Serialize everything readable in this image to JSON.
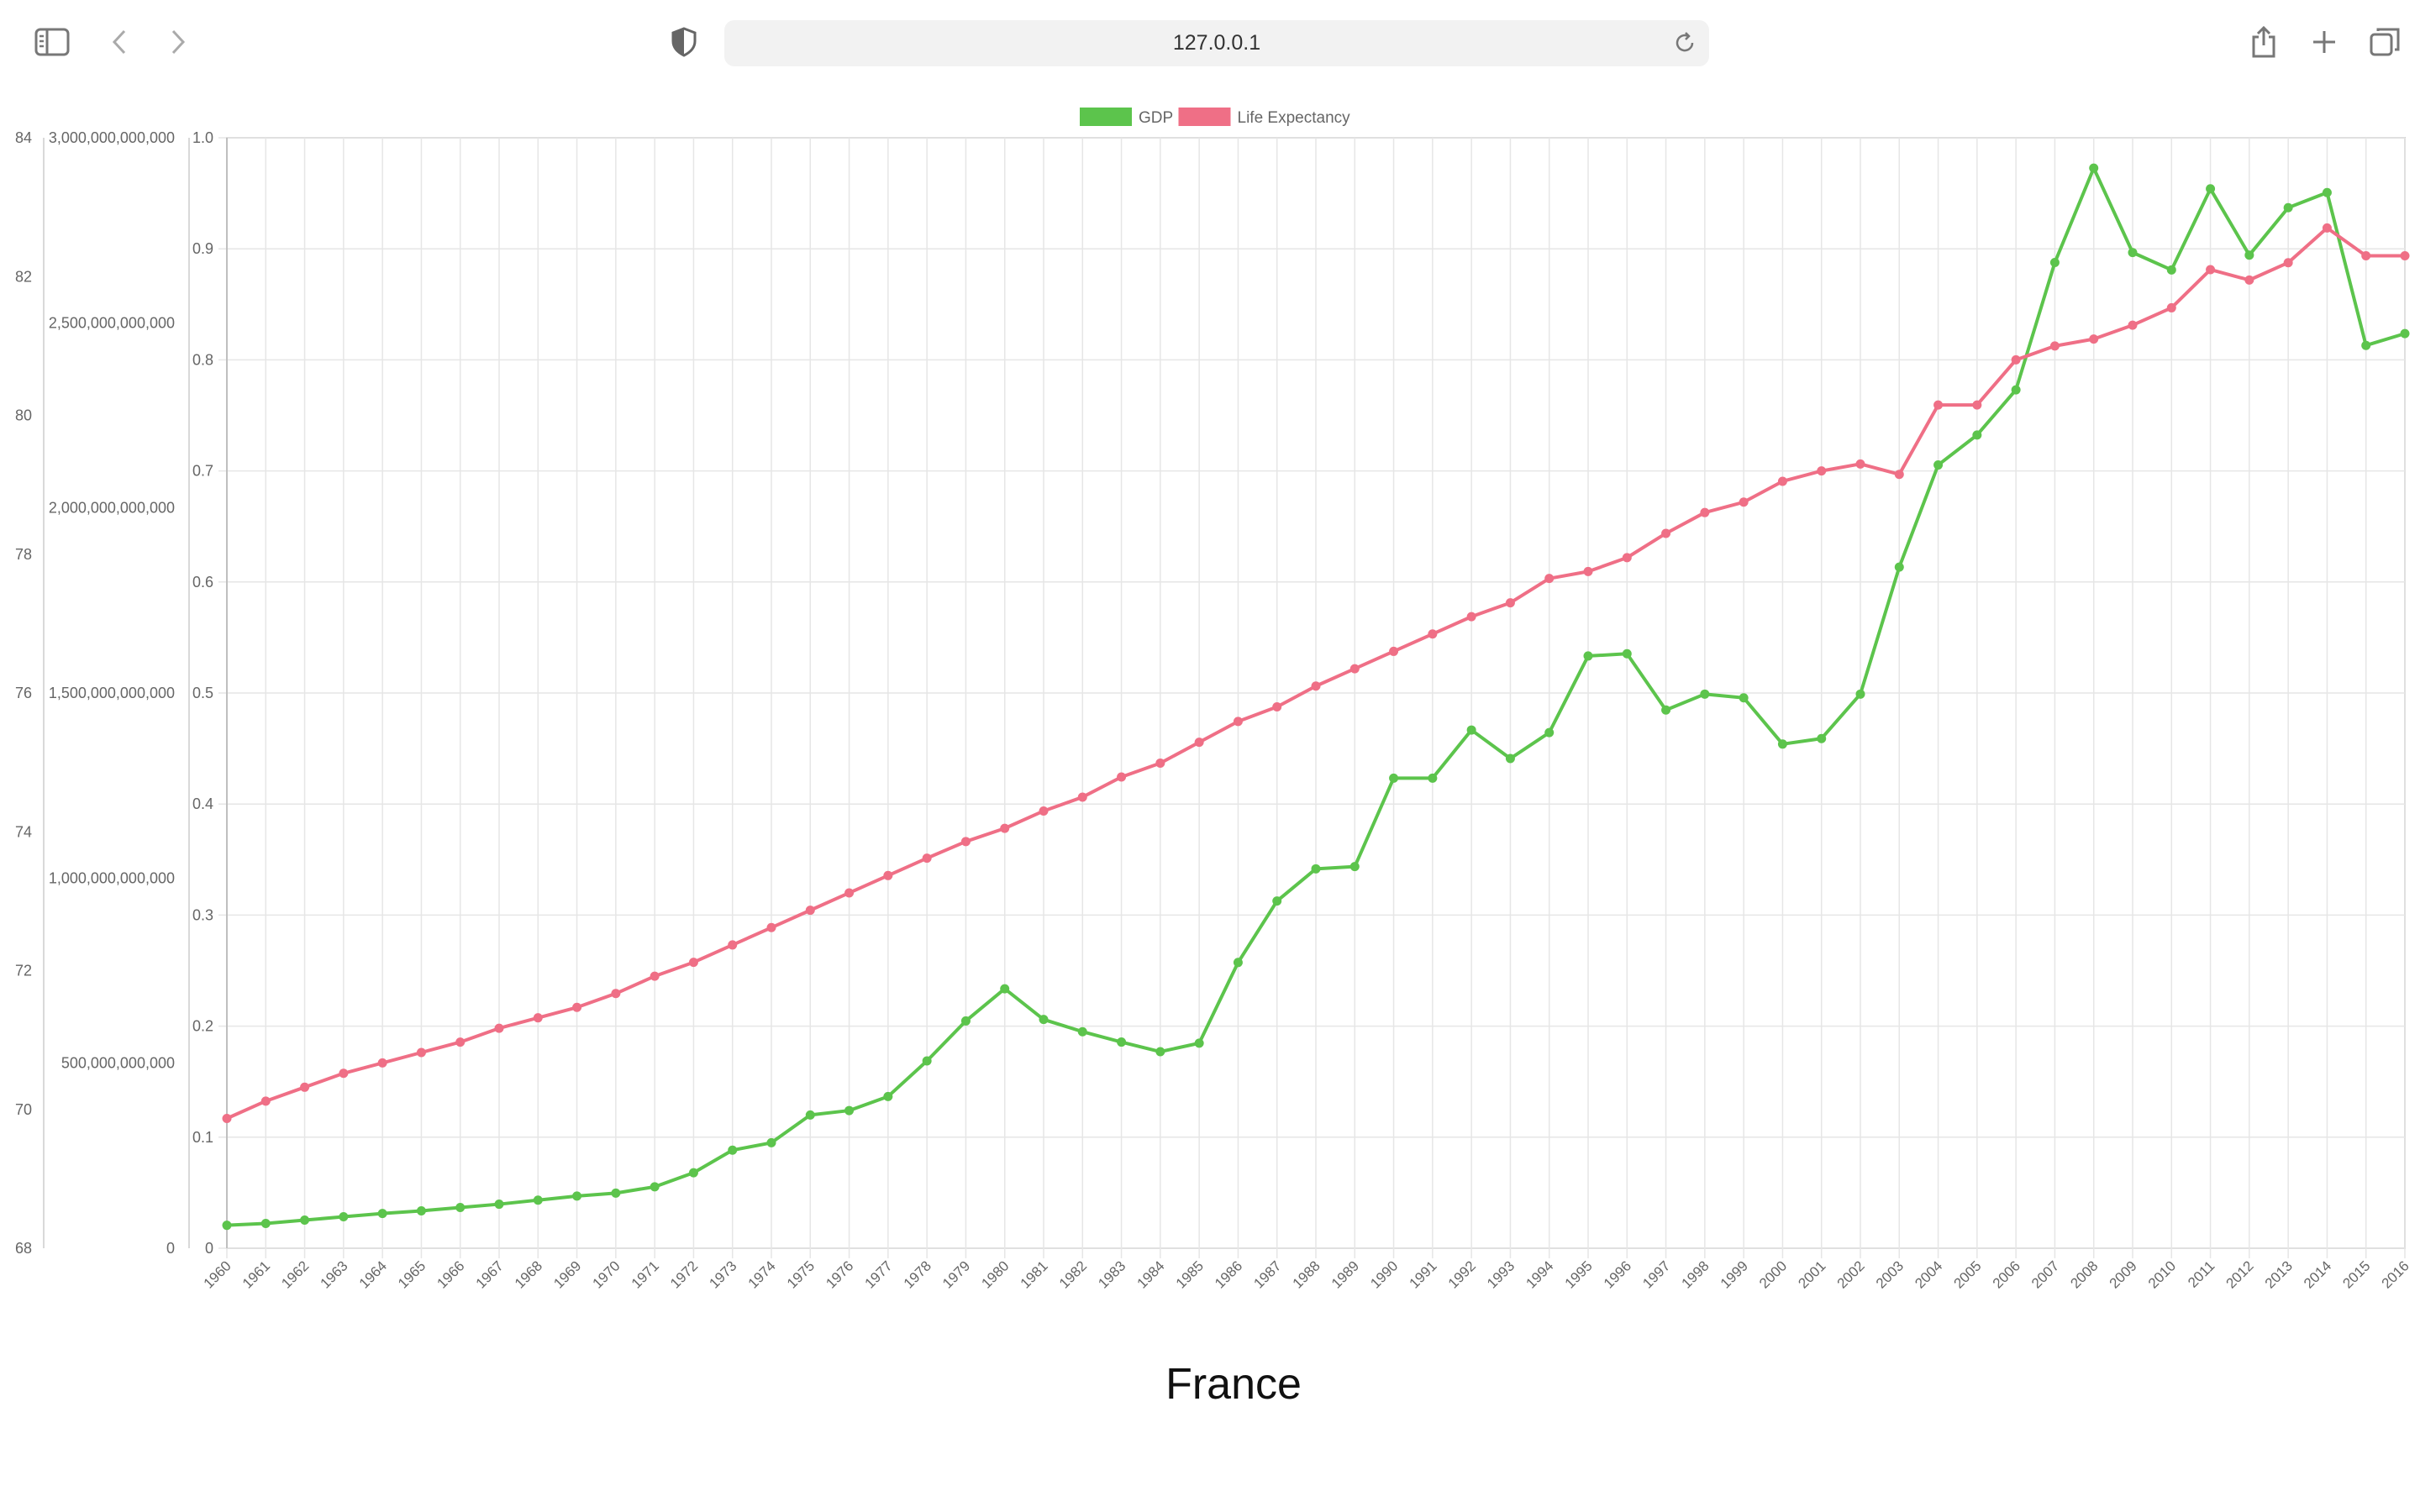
{
  "browser": {
    "address": "127.0.0.1",
    "icons": [
      "sidebar-icon",
      "back-icon",
      "forward-icon",
      "shield-icon",
      "reload-icon",
      "share-icon",
      "new-tab-icon",
      "tabs-overview-icon"
    ]
  },
  "colors": {
    "gdp": "#5cc44c",
    "life": "#ef6f86",
    "grid": "#e6e6e6",
    "axis_text": "#666666"
  },
  "chart_data": {
    "type": "line",
    "title": "France",
    "legend": {
      "placement": "top-center"
    },
    "x": [
      1960,
      1961,
      1962,
      1963,
      1964,
      1965,
      1966,
      1967,
      1968,
      1969,
      1970,
      1971,
      1972,
      1973,
      1974,
      1975,
      1976,
      1977,
      1978,
      1979,
      1980,
      1981,
      1982,
      1983,
      1984,
      1985,
      1986,
      1987,
      1988,
      1989,
      1990,
      1991,
      1992,
      1993,
      1994,
      1995,
      1996,
      1997,
      1998,
      1999,
      2000,
      2001,
      2002,
      2003,
      2004,
      2005,
      2006,
      2007,
      2008,
      2009,
      2010,
      2011,
      2012,
      2013,
      2014,
      2015,
      2016
    ],
    "series": [
      {
        "name": "GDP",
        "axis": "gdp",
        "values": [
          62000000000.0,
          67000000000.0,
          76000000000.0,
          85000000000.0,
          94000000000.0,
          101000000000.0,
          110000000000.0,
          119000000000.0,
          130000000000.0,
          141000000000.0,
          149000000000.0,
          166000000000.0,
          204000000000.0,
          265000000000.0,
          285000000000.0,
          360000000000.0,
          372000000000.0,
          410000000000.0,
          506000000000.0,
          614000000000.0,
          701000000000.0,
          618000000000.0,
          585000000000.0,
          557000000000.0,
          531000000000.0,
          554000000000.0,
          772000000000.0,
          938000000000.0,
          1025000000000.0,
          1031000000000.0,
          1270000000000.0,
          1270000000000.0,
          1400000000000.0,
          1323000000000.0,
          1393000000000.0,
          1600000000000.0,
          1606000000000.0,
          1454000000000.0,
          1497000000000.0,
          1487000000000.0,
          1362000000000.0,
          1377000000000.0,
          1497000000000.0,
          1840000000000.0,
          2116000000000.0,
          2197000000000.0,
          2319000000000.0,
          2663000000000.0,
          2918000000000.0,
          2690000000000.0,
          2643000000000.0,
          2862000000000.0,
          2683000000000.0,
          2811000000000.0,
          2852000000000.0,
          2439000000000.0,
          2471000000000.0
        ]
      },
      {
        "name": "Life Expectancy",
        "axis": "life",
        "values": [
          69.87,
          70.12,
          70.32,
          70.52,
          70.67,
          70.82,
          70.97,
          71.17,
          71.32,
          71.47,
          71.67,
          71.92,
          72.12,
          72.37,
          72.62,
          72.87,
          73.12,
          73.37,
          73.62,
          73.86,
          74.05,
          74.3,
          74.5,
          74.79,
          74.99,
          75.29,
          75.59,
          75.8,
          76.1,
          76.35,
          76.6,
          76.85,
          77.1,
          77.3,
          77.65,
          77.75,
          77.95,
          78.3,
          78.6,
          78.75,
          79.05,
          79.2,
          79.3,
          79.15,
          80.15,
          80.15,
          80.8,
          81.0,
          81.1,
          81.3,
          81.55,
          82.1,
          81.95,
          82.2,
          82.7,
          82.3,
          82.3
        ]
      }
    ],
    "axes": {
      "life": {
        "min": 68,
        "max": 84,
        "ticks": [
          84,
          82,
          80,
          78,
          76,
          74,
          72,
          70,
          68
        ]
      },
      "gdp": {
        "min": 0,
        "max": 3000000000000,
        "ticks": [
          "3,000,000,000,000",
          "2,500,000,000,000",
          "2,000,000,000,000",
          "1,500,000,000,000",
          "1,000,000,000,000",
          "500,000,000,000",
          "0"
        ]
      },
      "unit": {
        "min": 0,
        "max": 1,
        "ticks": [
          "1.0",
          "0.9",
          "0.8",
          "0.7",
          "0.6",
          "0.5",
          "0.4",
          "0.3",
          "0.2",
          "0.1",
          "0"
        ]
      }
    },
    "grid": true
  }
}
